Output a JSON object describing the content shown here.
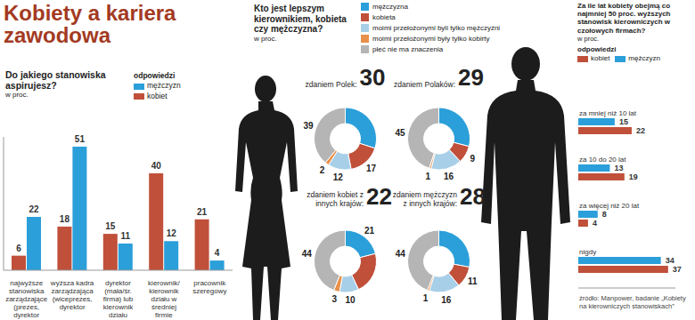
{
  "title": "Kobiety a kariera zawodowa",
  "source": "źródło: Manpower, badanie „Kobiety na kierowniczych stanowiskach”",
  "chart_data": [
    {
      "type": "bar",
      "title": "Do jakiego stanowiska aspirujesz?",
      "subtitle": "w proc.",
      "legend_title": "odpowiedzi",
      "categories": [
        "najwyższe stanowiska zarządzające (prezes, dyrektor",
        "wyższa kadra zarządzająca (wiceprezes, dyrektor",
        "dyrektor (mała/śr. firma) lub kierownik działu",
        "kierownik/ kierownik działu w średniej firmie",
        "pracownik szeregowy"
      ],
      "series": [
        {
          "name": "kobiet",
          "color": "#c0503a",
          "values": [
            6,
            18,
            15,
            40,
            21
          ]
        },
        {
          "name": "mężczyzn",
          "color": "#2b9fd9",
          "values": [
            22,
            51,
            11,
            12,
            4
          ]
        }
      ],
      "ylim": [
        0,
        55
      ],
      "data_labels": true,
      "tick_labels": "x"
    },
    {
      "type": "pie",
      "title": "Kto jest lepszym kierownikiem, kobieta czy mężczyzna?",
      "subtitle": "w proc.",
      "categories": [
        "mężczyzna",
        "kobieta",
        "moimi przełożonymi byli tylko mężczyźni",
        "moimi przełożonymi były tylko kobirty",
        "płeć nie ma znaczenia"
      ],
      "colors": [
        "#2b9fd9",
        "#c0503a",
        "#a8cfe8",
        "#e8904a",
        "#b5b5b5"
      ],
      "data_labels": true,
      "pies": [
        {
          "title": "zdaniem Polek:",
          "highlight": 30,
          "values": [
            30,
            17,
            12,
            2,
            39
          ]
        },
        {
          "title": "zdaniem Polaków:",
          "highlight": 29,
          "values": [
            29,
            9,
            16,
            1,
            45
          ]
        },
        {
          "title": "zdaniem kobiet z innych krajów:",
          "highlight": 22,
          "values": [
            21,
            22,
            10,
            3,
            44
          ]
        },
        {
          "title": "zdaniem mężczyzn z innych krajów:",
          "highlight": 28,
          "values": [
            28,
            11,
            16,
            1,
            44
          ]
        }
      ]
    },
    {
      "type": "bar",
      "orientation": "horizontal",
      "title": "Za ile lat kobiety obejmą co najmniej 50 proc. wyższych stanowisk kierowniczych w czołowych firmach?",
      "subtitle": "w proc.",
      "legend_title": "odpowiedzi",
      "categories": [
        "za mniej niż 10 lat",
        "za 10 do 20 lat",
        "za więcej niż 20 lat",
        "nigdy"
      ],
      "series": [
        {
          "name": "kobiet",
          "color": "#c0503a",
          "values": [
            22,
            19,
            4,
            37
          ]
        },
        {
          "name": "mężczyzn",
          "color": "#2b9fd9",
          "values": [
            15,
            13,
            8,
            34
          ]
        }
      ],
      "xlim": [
        0,
        40
      ],
      "data_labels": true,
      "tick_labels": "y"
    }
  ]
}
